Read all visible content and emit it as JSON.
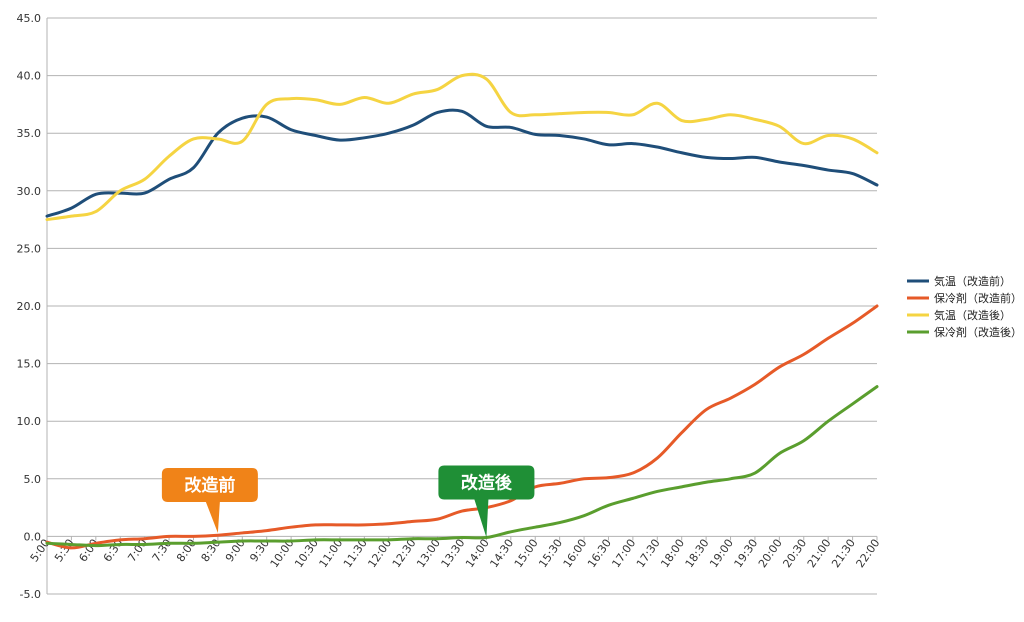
{
  "chart_data": {
    "type": "line",
    "title": "",
    "xlabel": "",
    "ylabel": "",
    "ylim": [
      -5.0,
      45.0
    ],
    "y_ticks": [
      "-5.0",
      "0.0",
      "5.0",
      "10.0",
      "15.0",
      "20.0",
      "25.0",
      "30.0",
      "35.0",
      "40.0",
      "45.0"
    ],
    "categories": [
      "5:00",
      "5:30",
      "6:00",
      "6:30",
      "7:00",
      "7:30",
      "8:00",
      "8:30",
      "9:00",
      "9:30",
      "10:00",
      "10:30",
      "11:00",
      "11:30",
      "12:00",
      "12:30",
      "13:00",
      "13:30",
      "14:00",
      "14:30",
      "15:00",
      "15:30",
      "16:00",
      "16:30",
      "17:00",
      "17:30",
      "18:00",
      "18:30",
      "19:00",
      "19:30",
      "20:00",
      "20:30",
      "21:00",
      "21:30",
      "22:00"
    ],
    "grid": true,
    "legend_position": "right",
    "series": [
      {
        "name": "気温（改造前）",
        "color": "#1f4e79",
        "values": [
          27.8,
          28.5,
          29.7,
          29.8,
          29.8,
          31.0,
          32.0,
          35.0,
          36.3,
          36.4,
          35.3,
          34.8,
          34.4,
          34.6,
          35.0,
          35.7,
          36.8,
          36.9,
          35.6,
          35.5,
          34.9,
          34.8,
          34.5,
          34.0,
          34.1,
          33.8,
          33.3,
          32.9,
          32.8,
          32.9,
          32.5,
          32.2,
          31.8,
          31.5,
          30.5
        ]
      },
      {
        "name": "保冷剤（改造前）",
        "color": "#e65a28",
        "values": [
          -0.5,
          -1.0,
          -0.6,
          -0.3,
          -0.2,
          0.0,
          0.0,
          0.1,
          0.3,
          0.5,
          0.8,
          1.0,
          1.0,
          1.0,
          1.1,
          1.3,
          1.5,
          2.2,
          2.5,
          3.1,
          4.3,
          4.6,
          5.0,
          5.1,
          5.5,
          6.8,
          9.0,
          11.0,
          12.0,
          13.2,
          14.7,
          15.8,
          17.2,
          18.5,
          20.0
        ]
      },
      {
        "name": "気温（改造後）",
        "color": "#f5d442",
        "values": [
          27.5,
          27.8,
          28.2,
          30.0,
          31.0,
          33.0,
          34.5,
          34.5,
          34.3,
          37.5,
          38.0,
          37.9,
          37.5,
          38.1,
          37.6,
          38.4,
          38.8,
          40.0,
          39.7,
          36.8,
          36.6,
          36.7,
          36.8,
          36.8,
          36.6,
          37.6,
          36.1,
          36.2,
          36.6,
          36.2,
          35.6,
          34.1,
          34.8,
          34.5,
          33.3
        ]
      },
      {
        "name": "保冷剤（改造後）",
        "color": "#5a9e2e",
        "values": [
          -0.6,
          -0.7,
          -0.8,
          -0.7,
          -0.7,
          -0.6,
          -0.6,
          -0.5,
          -0.4,
          -0.4,
          -0.4,
          -0.3,
          -0.3,
          -0.3,
          -0.3,
          -0.2,
          -0.2,
          -0.1,
          -0.1,
          0.4,
          0.8,
          1.2,
          1.8,
          2.7,
          3.3,
          3.9,
          4.3,
          4.7,
          5.0,
          5.5,
          7.2,
          8.3,
          10.0,
          11.5,
          13.0
        ]
      }
    ],
    "annotations": [
      {
        "text": "改造前",
        "color": "#f08318",
        "category": "8:30",
        "value": 0.3
      },
      {
        "text": "改造後",
        "color": "#1f8f36",
        "category": "14:00",
        "value": -0.1
      }
    ]
  }
}
